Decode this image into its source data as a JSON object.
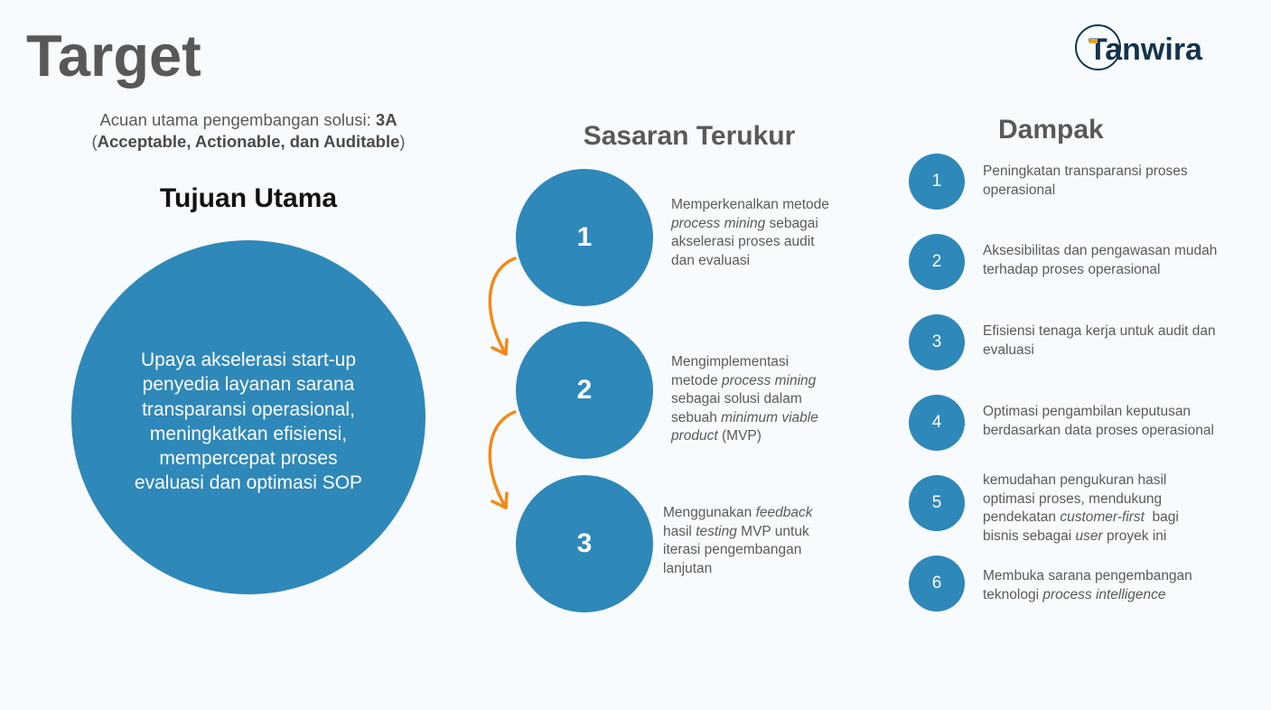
{
  "title": "Target",
  "logo": {
    "text": "Tanwira"
  },
  "intro": {
    "lines": [
      [
        {
          "t": "Acuan utama pengembangan solusi: "
        },
        {
          "t": "3A",
          "b": true
        }
      ],
      [
        {
          "t": "("
        },
        {
          "t": "Acceptable, Actionable, dan Auditable",
          "b": true
        },
        {
          "t": ")"
        }
      ]
    ]
  },
  "tujuan": {
    "heading": "Tujuan Utama",
    "lines": [
      "Upaya akselerasi start-up",
      "penyedia layanan sarana",
      "transparansi operasional,",
      "meningkatkan efisiensi,",
      "mempercepat proses",
      "evaluasi dan optimasi SOP"
    ]
  },
  "sasaran": {
    "heading": "Sasaran Terukur",
    "items": [
      {
        "number": "1",
        "lines": [
          [
            {
              "t": "Memperkenalkan metode"
            }
          ],
          [
            {
              "t": "process mining",
              "i": true
            },
            {
              "t": " sebagai"
            }
          ],
          [
            {
              "t": "akselerasi proses audit"
            }
          ],
          [
            {
              "t": "dan evaluasi"
            }
          ]
        ]
      },
      {
        "number": "2",
        "lines": [
          [
            {
              "t": "Mengimplementasi"
            }
          ],
          [
            {
              "t": "metode "
            },
            {
              "t": "process mining",
              "i": true
            }
          ],
          [
            {
              "t": "sebagai solusi dalam"
            }
          ],
          [
            {
              "t": "sebuah "
            },
            {
              "t": "minimum viable",
              "i": true
            }
          ],
          [
            {
              "t": "product",
              "i": true
            },
            {
              "t": " (MVP)"
            }
          ]
        ]
      },
      {
        "number": "3",
        "lines": [
          [
            {
              "t": "Menggunakan "
            },
            {
              "t": "feedback",
              "i": true
            }
          ],
          [
            {
              "t": "hasil "
            },
            {
              "t": "testing",
              "i": true
            },
            {
              "t": " MVP untuk"
            }
          ],
          [
            {
              "t": "iterasi pengembangan"
            }
          ],
          [
            {
              "t": "lanjutan"
            }
          ]
        ]
      }
    ]
  },
  "dampak": {
    "heading": "Dampak",
    "items": [
      {
        "number": "1",
        "lines": [
          [
            {
              "t": "Peningkatan transparansi proses"
            }
          ],
          [
            {
              "t": "operasional"
            }
          ]
        ]
      },
      {
        "number": "2",
        "lines": [
          [
            {
              "t": "Aksesibilitas dan pengawasan mudah"
            }
          ],
          [
            {
              "t": "terhadap proses operasional"
            }
          ]
        ]
      },
      {
        "number": "3",
        "lines": [
          [
            {
              "t": "Efisiensi tenaga kerja untuk audit dan"
            }
          ],
          [
            {
              "t": "evaluasi"
            }
          ]
        ]
      },
      {
        "number": "4",
        "lines": [
          [
            {
              "t": "Optimasi pengambilan keputusan"
            }
          ],
          [
            {
              "t": "berdasarkan data proses operasional"
            }
          ]
        ]
      },
      {
        "number": "5",
        "lines": [
          [
            {
              "t": "kemudahan pengukuran hasil"
            }
          ],
          [
            {
              "t": "optimasi proses, mendukung"
            }
          ],
          [
            {
              "t": "pendekatan "
            },
            {
              "t": "customer-first",
              "i": true
            },
            {
              "t": "  bagi"
            }
          ],
          [
            {
              "t": "bisnis sebagai "
            },
            {
              "t": "user",
              "i": true
            },
            {
              "t": " proyek ini"
            }
          ]
        ]
      },
      {
        "number": "6",
        "lines": [
          [
            {
              "t": "Membuka sarana pengembangan"
            }
          ],
          [
            {
              "t": "teknologi "
            },
            {
              "t": "process intelligence",
              "i": true
            }
          ]
        ]
      }
    ]
  },
  "icons": {
    "flow_arrow": "curved-down-arrow-icon",
    "logo_mark": "ring-icon"
  },
  "colors": {
    "background": "#f8fbfd",
    "accent": "#2e88b9",
    "arrow": "#f28a1a",
    "logo": "#13334c",
    "logo_accent": "#e3a52c",
    "text": "#5a5a5a"
  }
}
